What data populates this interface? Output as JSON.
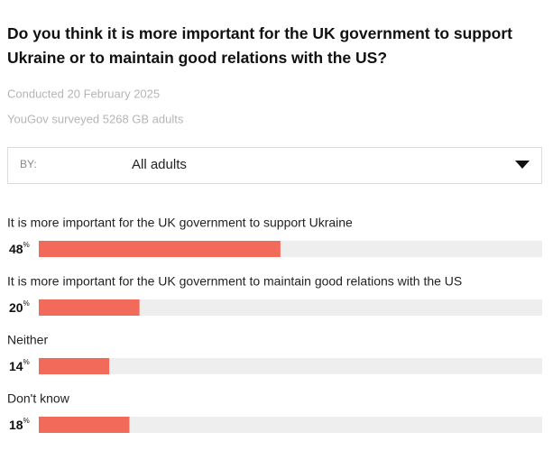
{
  "header": {
    "title": "Do you think it is more important for the UK government to support Ukraine or to maintain good relations with the US?",
    "conducted": "Conducted 20 February 2025",
    "surveyed": "YouGov surveyed 5268 GB adults"
  },
  "filter": {
    "label": "BY:",
    "value": "All adults"
  },
  "chart_data": {
    "type": "bar",
    "categories": [
      "It is more important for the UK government to support Ukraine",
      "It is more important for the UK government to maintain good relations with the US",
      "Neither",
      "Don't know"
    ],
    "values": [
      48,
      20,
      14,
      18
    ],
    "unit": "%",
    "xlim": [
      0,
      100
    ],
    "color": "#f26a5a",
    "track_color": "#eeeeee"
  }
}
